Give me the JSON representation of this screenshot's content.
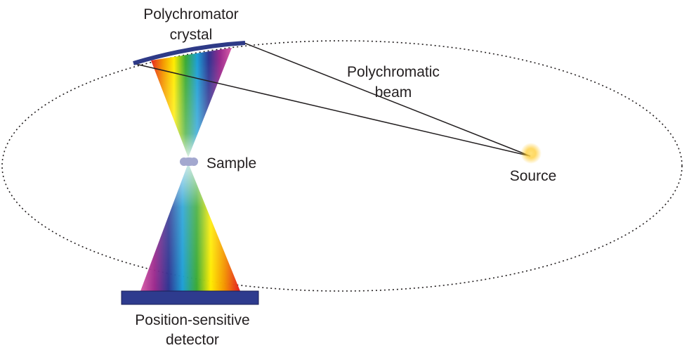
{
  "labels": {
    "crystal_line1": "Polychromator",
    "crystal_line2": "crystal",
    "beam_line1": "Polychromatic",
    "beam_line2": "beam",
    "sample": "Sample",
    "source": "Source",
    "detector_line1": "Position-sensitive",
    "detector_line2": "detector"
  },
  "colors": {
    "crystal": "#2e3a87",
    "detector": "#2e3b8e",
    "sample": "#a3a8cf",
    "source_glow": "#ffcc33",
    "ray": "#231f20",
    "orbit": "#231f20"
  },
  "spectrum": [
    "#e52421",
    "#f39200",
    "#ffed00",
    "#3aaa35",
    "#1d9fd6",
    "#2e3592",
    "#9b2a8d",
    "#d95fa8"
  ]
}
